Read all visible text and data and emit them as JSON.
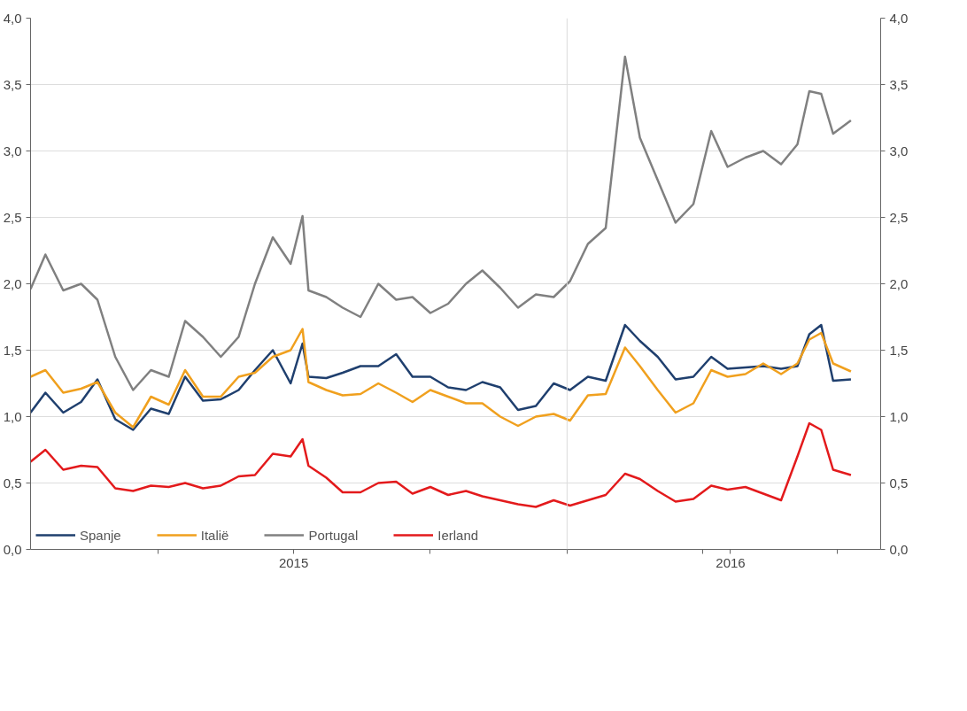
{
  "chart_data": {
    "type": "line",
    "x": [
      "2015-01-05",
      "2015-01-15",
      "2015-01-27",
      "2015-02-08",
      "2015-02-19",
      "2015-03-03",
      "2015-03-15",
      "2015-03-27",
      "2015-04-08",
      "2015-04-19",
      "2015-05-01",
      "2015-05-13",
      "2015-05-25",
      "2015-06-05",
      "2015-06-17",
      "2015-06-29",
      "2015-07-07",
      "2015-07-11",
      "2015-07-23",
      "2015-08-03",
      "2015-08-15",
      "2015-08-27",
      "2015-09-08",
      "2015-09-19",
      "2015-10-01",
      "2015-10-13",
      "2015-10-25",
      "2015-11-05",
      "2015-11-17",
      "2015-11-29",
      "2015-12-11",
      "2015-12-23",
      "2016-01-03",
      "2016-01-15",
      "2016-01-27",
      "2016-02-09",
      "2016-02-19",
      "2016-03-02",
      "2016-03-14",
      "2016-03-26",
      "2016-04-07",
      "2016-04-18",
      "2016-04-30",
      "2016-05-12",
      "2016-05-24",
      "2016-06-04",
      "2016-06-12",
      "2016-06-20",
      "2016-06-28",
      "2016-07-10"
    ],
    "series": [
      {
        "name": "Spanje",
        "color": "#1f3f6e",
        "values": [
          1.03,
          1.18,
          1.03,
          1.11,
          1.28,
          0.98,
          0.9,
          1.06,
          1.02,
          1.3,
          1.12,
          1.13,
          1.2,
          1.35,
          1.5,
          1.25,
          1.55,
          1.3,
          1.29,
          1.33,
          1.38,
          1.38,
          1.47,
          1.3,
          1.3,
          1.22,
          1.2,
          1.26,
          1.22,
          1.05,
          1.08,
          1.25,
          1.2,
          1.3,
          1.27,
          1.69,
          1.57,
          1.45,
          1.28,
          1.3,
          1.45,
          1.36,
          1.37,
          1.38,
          1.36,
          1.38,
          1.62,
          1.69,
          1.27,
          1.28
        ]
      },
      {
        "name": "Italië",
        "color": "#f0a01e",
        "values": [
          1.3,
          1.35,
          1.18,
          1.21,
          1.26,
          1.03,
          0.92,
          1.15,
          1.09,
          1.35,
          1.15,
          1.15,
          1.3,
          1.33,
          1.45,
          1.5,
          1.66,
          1.26,
          1.2,
          1.16,
          1.17,
          1.25,
          1.18,
          1.11,
          1.2,
          1.15,
          1.1,
          1.1,
          1.0,
          0.93,
          1.0,
          1.02,
          0.97,
          1.16,
          1.17,
          1.52,
          1.38,
          1.2,
          1.03,
          1.1,
          1.35,
          1.3,
          1.32,
          1.4,
          1.32,
          1.4,
          1.58,
          1.63,
          1.4,
          1.34
        ]
      },
      {
        "name": "Portugal",
        "color": "#808080",
        "values": [
          1.96,
          2.22,
          1.95,
          2.0,
          1.88,
          1.45,
          1.2,
          1.35,
          1.3,
          1.72,
          1.6,
          1.45,
          1.6,
          2.0,
          2.35,
          2.15,
          2.51,
          1.95,
          1.9,
          1.82,
          1.75,
          2.0,
          1.88,
          1.9,
          1.78,
          1.85,
          2.0,
          2.1,
          1.97,
          1.82,
          1.92,
          1.9,
          2.02,
          2.3,
          2.42,
          3.71,
          3.1,
          2.78,
          2.46,
          2.6,
          3.15,
          2.88,
          2.95,
          3.0,
          2.9,
          3.05,
          3.45,
          3.43,
          3.13,
          3.23
        ]
      },
      {
        "name": "Ierland",
        "color": "#e31a1c",
        "values": [
          0.66,
          0.75,
          0.6,
          0.63,
          0.62,
          0.46,
          0.44,
          0.48,
          0.47,
          0.5,
          0.46,
          0.48,
          0.55,
          0.56,
          0.72,
          0.7,
          0.83,
          0.63,
          0.54,
          0.43,
          0.43,
          0.5,
          0.51,
          0.42,
          0.47,
          0.41,
          0.44,
          0.4,
          0.37,
          0.34,
          0.32,
          0.37,
          0.33,
          0.37,
          0.41,
          0.57,
          0.53,
          0.44,
          0.36,
          0.38,
          0.48,
          0.45,
          0.47,
          0.42,
          0.37,
          0.7,
          0.95,
          0.9,
          0.6,
          0.56
        ]
      }
    ],
    "xlim": [
      "2015-01-05",
      "2016-07-30"
    ],
    "xticks": [
      {
        "value": "2015-04-01",
        "label": null
      },
      {
        "value": "2015-07-01",
        "label": "2015"
      },
      {
        "value": "2015-10-01",
        "label": null
      },
      {
        "value": "2016-01-01",
        "label": null
      },
      {
        "value": "2016-04-01",
        "label": null
      },
      {
        "value": "2016-04-20",
        "label": "2016"
      },
      {
        "value": "2016-07-01",
        "label": null
      }
    ],
    "ylim": [
      0,
      4
    ],
    "yticks": [
      {
        "value": 0,
        "label": "0,0"
      },
      {
        "value": 0.5,
        "label": "0,5"
      },
      {
        "value": 1,
        "label": "1,0"
      },
      {
        "value": 1.5,
        "label": "1,5"
      },
      {
        "value": 2,
        "label": "2,0"
      },
      {
        "value": 2.5,
        "label": "2,5"
      },
      {
        "value": 3,
        "label": "3,0"
      },
      {
        "value": 3.5,
        "label": "3,5"
      },
      {
        "value": 4,
        "label": "4,0"
      }
    ],
    "y2lim": [
      0,
      4
    ],
    "y2ticks": [
      {
        "value": 0,
        "label": "0,0"
      },
      {
        "value": 0.5,
        "label": "0,5"
      },
      {
        "value": 1,
        "label": "1,0"
      },
      {
        "value": 1.5,
        "label": "1,5"
      },
      {
        "value": 2,
        "label": "2,0"
      },
      {
        "value": 2.5,
        "label": "2,5"
      },
      {
        "value": 3,
        "label": "3,0"
      },
      {
        "value": 3.5,
        "label": "3,5"
      },
      {
        "value": 4,
        "label": "4,0"
      }
    ],
    "ref_lines": [
      {
        "axis": "x",
        "value": "2016-01-01",
        "color": "#dcdcdc"
      }
    ],
    "grid": "y",
    "legend": "bottom",
    "marker": "none",
    "line_style": "solid"
  }
}
